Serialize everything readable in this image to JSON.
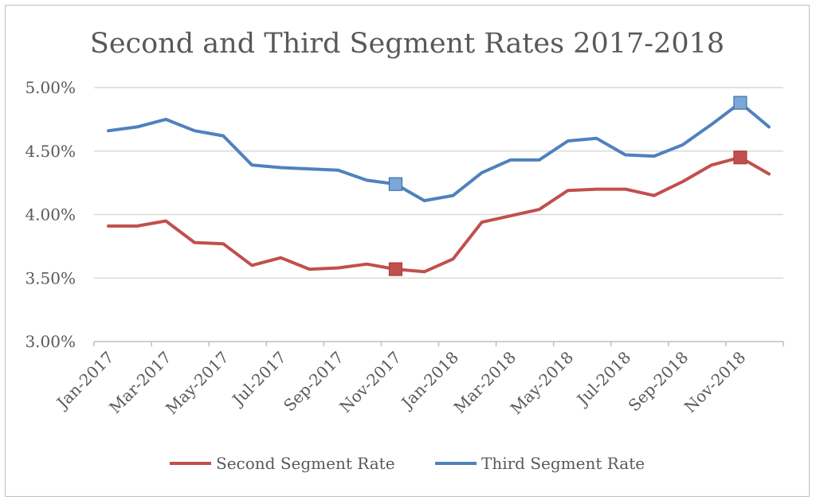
{
  "chart_data": {
    "type": "line",
    "title": "Second and Third Segment Rates 2017-2018",
    "x": [
      "Jan-2017",
      "Feb-2017",
      "Mar-2017",
      "Apr-2017",
      "May-2017",
      "Jun-2017",
      "Jul-2017",
      "Aug-2017",
      "Sep-2017",
      "Oct-2017",
      "Nov-2017",
      "Dec-2017",
      "Jan-2018",
      "Feb-2018",
      "Mar-2018",
      "Apr-2018",
      "May-2018",
      "Jun-2018",
      "Jul-2018",
      "Aug-2018",
      "Sep-2018",
      "Oct-2018",
      "Nov-2018",
      "Dec-2018"
    ],
    "x_tick_labels": [
      "Jan-2017",
      "Mar-2017",
      "May-2017",
      "Jul-2017",
      "Sep-2017",
      "Nov-2017",
      "Jan-2018",
      "Mar-2018",
      "May-2018",
      "Jul-2018",
      "Sep-2018",
      "Nov-2018"
    ],
    "y_tick_labels": [
      "3.00%",
      "3.50%",
      "4.00%",
      "4.50%",
      "5.00%"
    ],
    "ylim": [
      3.0,
      5.0
    ],
    "y_unit": "%",
    "grid": true,
    "legend_position": "bottom",
    "series": [
      {
        "name": "Second Segment Rate",
        "color": "#c0504d",
        "values": [
          3.91,
          3.91,
          3.95,
          3.78,
          3.77,
          3.6,
          3.66,
          3.57,
          3.58,
          3.61,
          3.57,
          3.55,
          3.65,
          3.94,
          3.99,
          4.04,
          4.19,
          4.2,
          4.2,
          4.15,
          4.26,
          4.39,
          4.45,
          4.32
        ],
        "markers": [
          {
            "x": "Nov-2017",
            "y": 3.57
          },
          {
            "x": "Nov-2018",
            "y": 4.45
          }
        ]
      },
      {
        "name": "Third Segment Rate",
        "color": "#4f81bd",
        "values": [
          4.66,
          4.69,
          4.75,
          4.66,
          4.62,
          4.39,
          4.37,
          4.36,
          4.35,
          4.27,
          4.24,
          4.11,
          4.15,
          4.33,
          4.43,
          4.43,
          4.58,
          4.6,
          4.47,
          4.46,
          4.55,
          4.71,
          4.88,
          4.69
        ],
        "markers": [
          {
            "x": "Nov-2017",
            "y": 4.24
          },
          {
            "x": "Nov-2018",
            "y": 4.88
          }
        ]
      }
    ]
  }
}
